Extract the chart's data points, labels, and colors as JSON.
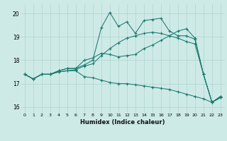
{
  "xlabel": "Humidex (Indice chaleur)",
  "xlim": [
    -0.5,
    23.5
  ],
  "ylim": [
    15.75,
    20.4
  ],
  "xticks": [
    0,
    1,
    2,
    3,
    4,
    5,
    6,
    7,
    8,
    9,
    10,
    11,
    12,
    13,
    14,
    15,
    16,
    17,
    18,
    19,
    20,
    21,
    22,
    23
  ],
  "yticks": [
    16,
    17,
    18,
    19,
    20
  ],
  "bg_color": "#ceeae7",
  "grid_color": "#aed4d0",
  "line_color": "#1a7a6e",
  "series": [
    [
      17.4,
      17.2,
      17.4,
      17.4,
      17.5,
      17.55,
      17.55,
      17.3,
      17.25,
      17.15,
      17.05,
      17.0,
      17.0,
      16.95,
      16.9,
      16.85,
      16.8,
      16.75,
      16.65,
      16.55,
      16.45,
      16.35,
      16.2,
      16.4
    ],
    [
      17.4,
      17.2,
      17.4,
      17.4,
      17.5,
      17.55,
      17.6,
      17.75,
      17.85,
      18.2,
      18.5,
      18.75,
      18.95,
      19.05,
      19.15,
      19.2,
      19.15,
      19.05,
      18.95,
      18.8,
      18.7,
      17.4,
      16.2,
      16.4
    ],
    [
      17.4,
      17.2,
      17.4,
      17.4,
      17.55,
      17.65,
      17.65,
      17.8,
      18.0,
      19.4,
      20.05,
      19.45,
      19.65,
      19.15,
      19.7,
      19.75,
      19.8,
      19.25,
      19.05,
      19.05,
      18.9,
      17.4,
      16.2,
      16.45
    ],
    [
      17.4,
      17.2,
      17.4,
      17.4,
      17.55,
      17.65,
      17.65,
      18.0,
      18.1,
      18.3,
      18.25,
      18.15,
      18.2,
      18.25,
      18.5,
      18.65,
      18.85,
      19.05,
      19.25,
      19.35,
      18.95,
      17.4,
      16.2,
      16.45
    ]
  ]
}
